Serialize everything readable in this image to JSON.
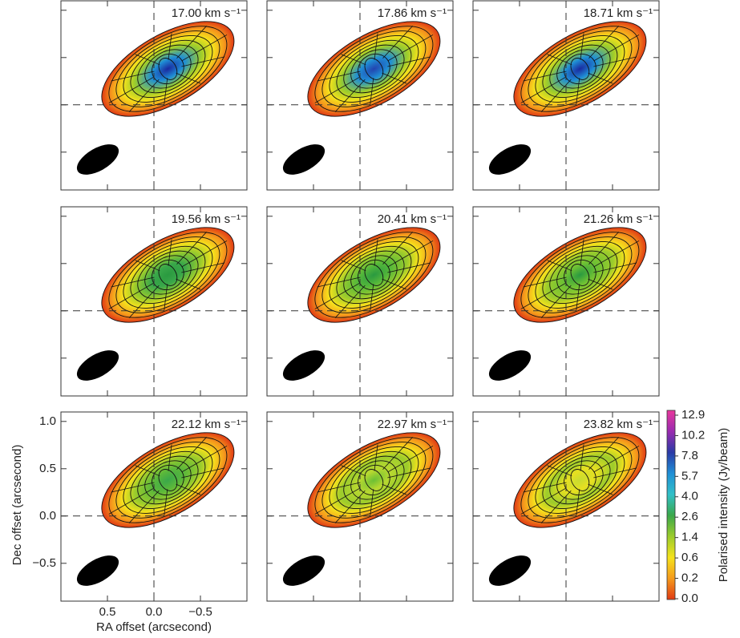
{
  "chart_data": {
    "type": "heatmap",
    "panels": [
      {
        "label": "17.00 km s⁻¹"
      },
      {
        "label": "17.86 km s⁻¹"
      },
      {
        "label": "18.71 km s⁻¹"
      },
      {
        "label": "19.56 km s⁻¹"
      },
      {
        "label": "20.41 km s⁻¹"
      },
      {
        "label": "21.26 km s⁻¹"
      },
      {
        "label": "22.12 km s⁻¹"
      },
      {
        "label": "22.97 km s⁻¹"
      },
      {
        "label": "23.82 km s⁻¹"
      }
    ],
    "x_label": "RA offset (arcsecond)",
    "y_label": "Dec offset (arcsecond)",
    "xlim": [
      1.0,
      -1.0
    ],
    "ylim": [
      -0.9,
      1.1
    ],
    "xticks": [
      0.5,
      {
        "value": 0,
        "label": "0.0"
      },
      {
        "value": -0.5,
        "label": "−0.5"
      }
    ],
    "yticks": [
      {
        "value": 1,
        "label": "1.0"
      },
      0.5,
      {
        "value": 0,
        "label": "0.0"
      },
      {
        "value": -0.5,
        "label": "−0.5"
      }
    ],
    "colorbar": {
      "label": "Polarised intensity (Jy/beam)",
      "ticks": [
        12.9,
        10.2,
        7.8,
        5.7,
        {
          "value": 4,
          "label": "4.0"
        },
        2.6,
        1.4,
        0.6,
        0.2,
        {
          "value": 0,
          "label": "0.0"
        }
      ],
      "colors": [
        "#e8389c",
        "#9a2bb0",
        "#2a3aa6",
        "#1f8fd6",
        "#31c0c8",
        "#3aa84a",
        "#9ccc2c",
        "#f5e21c",
        "#f59a1c",
        "#e03a14"
      ]
    }
  }
}
